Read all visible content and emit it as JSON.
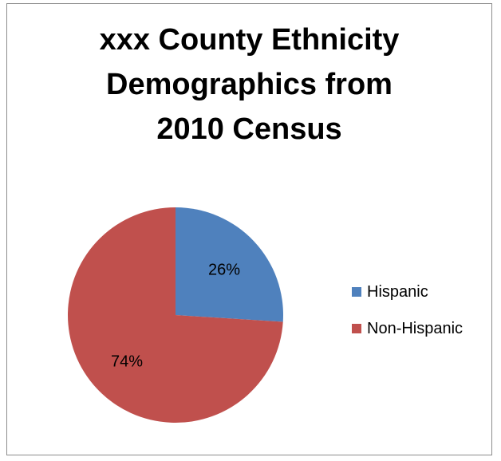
{
  "chart_data": {
    "type": "pie",
    "title": "xxx County Ethnicity Demographics from 2010 Census",
    "title_lines": [
      "xxx County Ethnicity",
      "Demographics from",
      "2010 Census"
    ],
    "categories": [
      "Hispanic",
      "Non-Hispanic"
    ],
    "values": [
      26,
      74
    ],
    "labels": [
      "26%",
      "74%"
    ],
    "colors": [
      "#4f81bd",
      "#c0504d"
    ],
    "legend_position": "right",
    "start_angle": "12 o'clock, clockwise"
  }
}
